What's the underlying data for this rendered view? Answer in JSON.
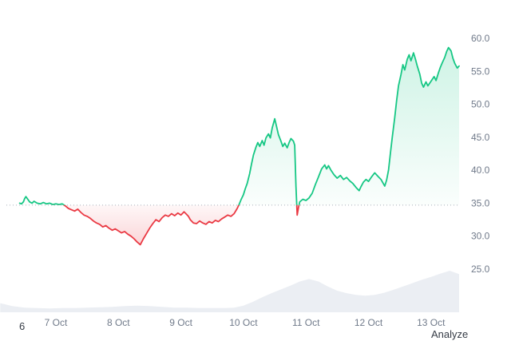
{
  "page": {
    "bottom_left_label": "6",
    "analyze_label": "Analyze"
  },
  "chart_data": {
    "type": "line",
    "title": "",
    "xlabel": "",
    "ylabel": "",
    "legend": false,
    "grid": false,
    "y_axis_side": "right",
    "ylim": [
      23,
      62
    ],
    "baseline": 34.7,
    "y_ticks": [
      60,
      55,
      50,
      45,
      40,
      35,
      30,
      25
    ],
    "y_tick_labels": [
      "60.0",
      "55.0",
      "50.0",
      "45.0",
      "40.0",
      "35.0",
      "30.0",
      "25.0"
    ],
    "x_ticks": [
      7,
      8,
      9,
      10,
      11,
      12,
      13
    ],
    "x_tick_labels": [
      "7 Oct",
      "8 Oct",
      "9 Oct",
      "10 Oct",
      "11 Oct",
      "12 Oct",
      "13 Oct"
    ],
    "colors": {
      "up": "#16c784",
      "down": "#ea3943",
      "baseline": "#a9b0ba",
      "axis_text": "#707a8a",
      "volume_fill": "#ebeef3"
    },
    "series": [
      {
        "name": "price",
        "points": [
          [
            6.42,
            35.0
          ],
          [
            6.45,
            34.9
          ],
          [
            6.48,
            35.2
          ],
          [
            6.5,
            35.7
          ],
          [
            6.52,
            36.0
          ],
          [
            6.55,
            35.6
          ],
          [
            6.58,
            35.2
          ],
          [
            6.62,
            35.0
          ],
          [
            6.65,
            35.3
          ],
          [
            6.7,
            35.0
          ],
          [
            6.75,
            34.9
          ],
          [
            6.8,
            35.1
          ],
          [
            6.85,
            34.9
          ],
          [
            6.9,
            35.0
          ],
          [
            6.95,
            34.8
          ],
          [
            7.0,
            34.9
          ],
          [
            7.05,
            34.8
          ],
          [
            7.1,
            34.9
          ],
          [
            7.15,
            34.6
          ],
          [
            7.2,
            34.2
          ],
          [
            7.25,
            34.0
          ],
          [
            7.3,
            33.8
          ],
          [
            7.35,
            34.1
          ],
          [
            7.4,
            33.6
          ],
          [
            7.45,
            33.2
          ],
          [
            7.5,
            33.0
          ],
          [
            7.55,
            32.7
          ],
          [
            7.6,
            32.3
          ],
          [
            7.65,
            32.0
          ],
          [
            7.7,
            31.8
          ],
          [
            7.75,
            31.4
          ],
          [
            7.8,
            31.6
          ],
          [
            7.85,
            31.2
          ],
          [
            7.9,
            30.9
          ],
          [
            7.95,
            31.1
          ],
          [
            8.0,
            30.8
          ],
          [
            8.05,
            30.5
          ],
          [
            8.1,
            30.7
          ],
          [
            8.15,
            30.3
          ],
          [
            8.2,
            30.0
          ],
          [
            8.25,
            29.6
          ],
          [
            8.3,
            29.1
          ],
          [
            8.35,
            28.7
          ],
          [
            8.4,
            29.6
          ],
          [
            8.45,
            30.4
          ],
          [
            8.5,
            31.2
          ],
          [
            8.55,
            31.9
          ],
          [
            8.6,
            32.5
          ],
          [
            8.65,
            32.2
          ],
          [
            8.7,
            32.8
          ],
          [
            8.75,
            33.2
          ],
          [
            8.8,
            33.0
          ],
          [
            8.85,
            33.4
          ],
          [
            8.9,
            33.1
          ],
          [
            8.95,
            33.5
          ],
          [
            9.0,
            33.2
          ],
          [
            9.05,
            33.7
          ],
          [
            9.08,
            33.4
          ],
          [
            9.12,
            33.0
          ],
          [
            9.15,
            32.5
          ],
          [
            9.2,
            32.0
          ],
          [
            9.25,
            31.9
          ],
          [
            9.3,
            32.3
          ],
          [
            9.35,
            32.0
          ],
          [
            9.4,
            31.8
          ],
          [
            9.45,
            32.2
          ],
          [
            9.5,
            32.0
          ],
          [
            9.55,
            32.4
          ],
          [
            9.6,
            32.2
          ],
          [
            9.65,
            32.6
          ],
          [
            9.7,
            32.9
          ],
          [
            9.75,
            33.2
          ],
          [
            9.8,
            33.0
          ],
          [
            9.85,
            33.4
          ],
          [
            9.9,
            34.2
          ],
          [
            9.93,
            34.8
          ],
          [
            9.96,
            35.5
          ],
          [
            10.0,
            36.3
          ],
          [
            10.03,
            37.2
          ],
          [
            10.06,
            38.0
          ],
          [
            10.1,
            39.5
          ],
          [
            10.13,
            41.0
          ],
          [
            10.16,
            42.3
          ],
          [
            10.2,
            43.5
          ],
          [
            10.23,
            44.2
          ],
          [
            10.26,
            43.6
          ],
          [
            10.3,
            44.5
          ],
          [
            10.33,
            43.8
          ],
          [
            10.36,
            44.9
          ],
          [
            10.4,
            45.5
          ],
          [
            10.43,
            44.9
          ],
          [
            10.46,
            46.4
          ],
          [
            10.5,
            47.8
          ],
          [
            10.53,
            46.6
          ],
          [
            10.56,
            45.4
          ],
          [
            10.6,
            44.4
          ],
          [
            10.63,
            43.6
          ],
          [
            10.66,
            44.1
          ],
          [
            10.7,
            43.4
          ],
          [
            10.73,
            44.2
          ],
          [
            10.76,
            44.8
          ],
          [
            10.8,
            44.4
          ],
          [
            10.82,
            43.8
          ],
          [
            10.84,
            37.5
          ],
          [
            10.86,
            33.2
          ],
          [
            10.88,
            34.3
          ],
          [
            10.9,
            35.2
          ],
          [
            10.95,
            35.6
          ],
          [
            11.0,
            35.4
          ],
          [
            11.05,
            35.8
          ],
          [
            11.1,
            36.5
          ],
          [
            11.15,
            37.8
          ],
          [
            11.2,
            39.0
          ],
          [
            11.25,
            40.2
          ],
          [
            11.3,
            40.8
          ],
          [
            11.33,
            40.2
          ],
          [
            11.36,
            40.7
          ],
          [
            11.4,
            40.0
          ],
          [
            11.45,
            39.3
          ],
          [
            11.5,
            38.8
          ],
          [
            11.55,
            39.2
          ],
          [
            11.6,
            38.6
          ],
          [
            11.65,
            38.9
          ],
          [
            11.7,
            38.4
          ],
          [
            11.75,
            38.0
          ],
          [
            11.8,
            37.4
          ],
          [
            11.85,
            36.9
          ],
          [
            11.88,
            37.5
          ],
          [
            11.92,
            38.2
          ],
          [
            11.96,
            38.6
          ],
          [
            12.0,
            38.3
          ],
          [
            12.05,
            39.0
          ],
          [
            12.1,
            39.6
          ],
          [
            12.15,
            39.1
          ],
          [
            12.2,
            38.6
          ],
          [
            12.23,
            38.1
          ],
          [
            12.26,
            37.6
          ],
          [
            12.29,
            38.5
          ],
          [
            12.32,
            40.0
          ],
          [
            12.35,
            42.5
          ],
          [
            12.38,
            45.0
          ],
          [
            12.42,
            48.0
          ],
          [
            12.45,
            50.5
          ],
          [
            12.48,
            52.8
          ],
          [
            12.52,
            54.5
          ],
          [
            12.55,
            56.0
          ],
          [
            12.58,
            55.2
          ],
          [
            12.62,
            56.8
          ],
          [
            12.65,
            57.5
          ],
          [
            12.68,
            56.6
          ],
          [
            12.72,
            57.8
          ],
          [
            12.75,
            56.9
          ],
          [
            12.78,
            55.8
          ],
          [
            12.82,
            54.6
          ],
          [
            12.85,
            53.2
          ],
          [
            12.88,
            52.6
          ],
          [
            12.92,
            53.4
          ],
          [
            12.95,
            52.8
          ],
          [
            13.0,
            53.5
          ],
          [
            13.05,
            54.2
          ],
          [
            13.08,
            53.6
          ],
          [
            13.12,
            54.8
          ],
          [
            13.15,
            55.6
          ],
          [
            13.18,
            56.3
          ],
          [
            13.22,
            57.1
          ],
          [
            13.25,
            58.0
          ],
          [
            13.28,
            58.6
          ],
          [
            13.32,
            58.1
          ],
          [
            13.35,
            57.0
          ],
          [
            13.38,
            56.2
          ],
          [
            13.42,
            55.5
          ],
          [
            13.45,
            55.8
          ]
        ]
      }
    ],
    "volume": {
      "name": "volume",
      "points": [
        [
          6.11,
          0.22
        ],
        [
          6.3,
          0.15
        ],
        [
          6.5,
          0.11
        ],
        [
          6.7,
          0.1
        ],
        [
          6.9,
          0.09
        ],
        [
          7.1,
          0.1
        ],
        [
          7.3,
          0.1
        ],
        [
          7.5,
          0.11
        ],
        [
          7.7,
          0.12
        ],
        [
          7.9,
          0.13
        ],
        [
          8.1,
          0.15
        ],
        [
          8.3,
          0.16
        ],
        [
          8.5,
          0.15
        ],
        [
          8.7,
          0.13
        ],
        [
          8.9,
          0.11
        ],
        [
          9.1,
          0.11
        ],
        [
          9.3,
          0.1
        ],
        [
          9.5,
          0.1
        ],
        [
          9.7,
          0.1
        ],
        [
          9.85,
          0.11
        ],
        [
          10.0,
          0.16
        ],
        [
          10.15,
          0.25
        ],
        [
          10.3,
          0.36
        ],
        [
          10.45,
          0.46
        ],
        [
          10.6,
          0.55
        ],
        [
          10.75,
          0.64
        ],
        [
          10.9,
          0.74
        ],
        [
          11.05,
          0.8
        ],
        [
          11.2,
          0.74
        ],
        [
          11.35,
          0.62
        ],
        [
          11.5,
          0.52
        ],
        [
          11.65,
          0.46
        ],
        [
          11.8,
          0.42
        ],
        [
          11.95,
          0.4
        ],
        [
          12.1,
          0.42
        ],
        [
          12.25,
          0.47
        ],
        [
          12.4,
          0.54
        ],
        [
          12.55,
          0.62
        ],
        [
          12.7,
          0.7
        ],
        [
          12.85,
          0.78
        ],
        [
          13.0,
          0.85
        ],
        [
          13.15,
          0.93
        ],
        [
          13.3,
          1.0
        ],
        [
          13.45,
          0.92
        ]
      ]
    }
  }
}
